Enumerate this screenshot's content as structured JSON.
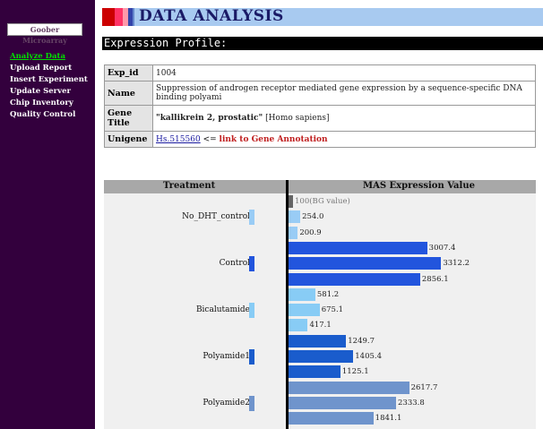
{
  "sidebar": {
    "logo": "Goober Microarray",
    "items": [
      {
        "label": "Analyze Data",
        "active": true
      },
      {
        "label": "Upload Report",
        "active": false
      },
      {
        "label": "Insert Experiment",
        "active": false
      },
      {
        "label": "Update Server",
        "active": false
      },
      {
        "label": "Chip Inventory",
        "active": false
      },
      {
        "label": "Quality Control",
        "active": false
      }
    ]
  },
  "header": {
    "title": "DATA ANALYSIS",
    "bar_colors": [
      "#cc0000",
      "#ff3366",
      "#ff99aa",
      "#3344aa",
      "#6688cc"
    ]
  },
  "section": {
    "title": "Expression Profile:"
  },
  "info": {
    "exp_id_label": "Exp_id",
    "exp_id": "1004",
    "name_label": "Name",
    "name": "Suppression of androgen receptor mediated gene expression by a sequence-specific DNA binding polyami",
    "gene_title_label": "Gene Title",
    "gene_title_bold": "\"kallikrein 2, prostatic\"",
    "gene_title_species": "[Homo sapiens]",
    "unigene_label": "Unigene",
    "unigene_link": "Hs.515560",
    "unigene_arrow": "<=",
    "unigene_annotation": "link to Gene Annotation"
  },
  "chart_data": {
    "type": "bar",
    "orientation": "horizontal",
    "headers": [
      "Treatment",
      "MAS Expression Value"
    ],
    "bg_label": "100(BG value)",
    "bg_value": 100,
    "xlim": [
      0,
      3500
    ],
    "groups": [
      {
        "name": "No_DHT_control",
        "color": "#99ccf5",
        "values": [
          254.0,
          200.9
        ],
        "value_labels": [
          "254.0",
          "200.9"
        ]
      },
      {
        "name": "Control",
        "color": "#2255dd",
        "values": [
          3007.4,
          3312.2,
          2856.1
        ],
        "value_labels": [
          "3007.4",
          "3312.2",
          "2856.1"
        ]
      },
      {
        "name": "Bicalutamide",
        "color": "#88ccf5",
        "values": [
          581.2,
          675.1,
          417.1
        ],
        "value_labels": [
          "581.2",
          "675.1",
          "417.1"
        ]
      },
      {
        "name": "Polyamide1",
        "color": "#1a5ccc",
        "values": [
          1249.7,
          1405.4,
          1125.1
        ],
        "value_labels": [
          "1249.7",
          "1405.4",
          "1125.1"
        ]
      },
      {
        "name": "Polyamide2",
        "color": "#6f94cc",
        "values": [
          2617.7,
          2333.8,
          1841.1
        ],
        "value_labels": [
          "2617.7",
          "2333.8",
          "1841.1"
        ]
      }
    ]
  }
}
